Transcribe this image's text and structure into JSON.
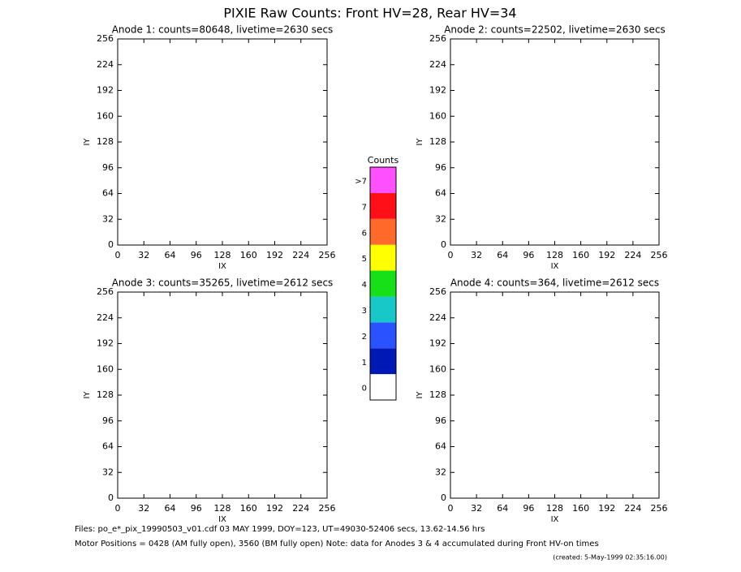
{
  "chart_data": [
    {
      "type": "heatmap",
      "title": "Anode 1: counts=80648, livetime=2630 secs",
      "xlabel": "IX",
      "ylabel": "IY",
      "xlim": [
        0,
        256
      ],
      "ylim": [
        0,
        256
      ],
      "xticks": [
        0,
        32,
        64,
        96,
        128,
        160,
        192,
        224,
        256
      ],
      "yticks": [
        0,
        32,
        64,
        96,
        128,
        160,
        192,
        224,
        256
      ]
    },
    {
      "type": "heatmap",
      "title": "Anode 2: counts=22502, livetime=2630 secs",
      "xlabel": "IX",
      "ylabel": "IY",
      "xlim": [
        0,
        256
      ],
      "ylim": [
        0,
        256
      ],
      "xticks": [
        0,
        32,
        64,
        96,
        128,
        160,
        192,
        224,
        256
      ],
      "yticks": [
        0,
        32,
        64,
        96,
        128,
        160,
        192,
        224,
        256
      ]
    },
    {
      "type": "heatmap",
      "title": "Anode 3: counts=35265, livetime=2612 secs",
      "xlabel": "IX",
      "ylabel": "IY",
      "xlim": [
        0,
        256
      ],
      "ylim": [
        0,
        256
      ],
      "xticks": [
        0,
        32,
        64,
        96,
        128,
        160,
        192,
        224,
        256
      ],
      "yticks": [
        0,
        32,
        64,
        96,
        128,
        160,
        192,
        224,
        256
      ]
    },
    {
      "type": "heatmap",
      "title": "Anode 4: counts=364, livetime=2612 secs",
      "xlabel": "IX",
      "ylabel": "IY",
      "xlim": [
        0,
        256
      ],
      "ylim": [
        0,
        256
      ],
      "xticks": [
        0,
        32,
        64,
        96,
        128,
        160,
        192,
        224,
        256
      ],
      "yticks": [
        0,
        32,
        64,
        96,
        128,
        160,
        192,
        224,
        256
      ]
    }
  ],
  "title": "PIXIE Raw Counts:  Front HV=28, Rear HV=34",
  "colorbar": {
    "title": "Counts",
    "labels": [
      "0",
      "1",
      "2",
      "3",
      "4",
      "5",
      "6",
      "7",
      ">7"
    ],
    "colors": [
      "#ffffff",
      "#0018b4",
      "#2a52ff",
      "#18c8c8",
      "#18e018",
      "#ffff00",
      "#ff6a2a",
      "#ff0f17",
      "#ff50ff"
    ]
  },
  "footer": [
    "Files: po_e*_pix_19990503_v01.cdf    03 MAY 1999, DOY=123, UT=49030-52406 secs, 13.62-14.56 hrs",
    "Motor Positions = 0428 (AM fully open), 3560 (BM fully open)    Note: data for Anodes 3 & 4 accumulated during Front HV-on times",
    "(created:  5-May-1999 02:35:16.00)"
  ]
}
